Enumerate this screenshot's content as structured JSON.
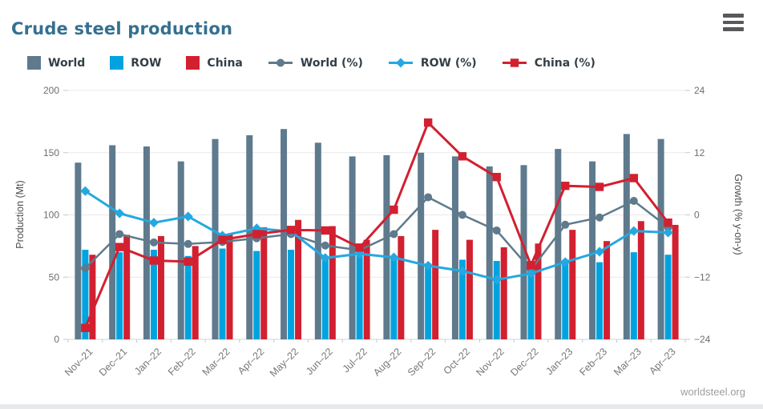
{
  "header": {
    "title": "Crude steel production"
  },
  "menu": {
    "icon": "hamburger-menu"
  },
  "footer": {
    "source": "worldsteel.org"
  },
  "legend": {
    "items": [
      {
        "label": "World",
        "type": "bar",
        "color": "#5e7a8c"
      },
      {
        "label": "ROW",
        "type": "bar",
        "color": "#00a3e0"
      },
      {
        "label": "China",
        "type": "bar",
        "color": "#d22030"
      },
      {
        "label": "World (%)",
        "type": "line",
        "marker": "circle",
        "color": "#5e7a8c"
      },
      {
        "label": "ROW (%)",
        "type": "line",
        "marker": "diamond",
        "color": "#25a8e0"
      },
      {
        "label": "China (%)",
        "type": "line",
        "marker": "square",
        "color": "#d22030"
      }
    ]
  },
  "chart_data": {
    "type": "bar+line combo, dual axis",
    "title": "Crude steel production",
    "categories": [
      "Nov–21",
      "Dec–21",
      "Jan–22",
      "Feb–22",
      "Mar–22",
      "Apr–22",
      "May–22",
      "Jun–22",
      "Jul–22",
      "Aug–22",
      "Sep–22",
      "Oct–22",
      "Nov–22",
      "Dec–22",
      "Jan–23",
      "Feb–23",
      "Mar–23",
      "Apr–23"
    ],
    "bar_series": [
      {
        "name": "World",
        "axis": "left",
        "color": "#5e7a8c",
        "values": [
          142,
          156,
          155,
          143,
          161,
          164,
          169,
          158,
          147,
          148,
          150,
          147,
          139,
          140,
          153,
          143,
          165,
          161
        ]
      },
      {
        "name": "ROW",
        "axis": "left",
        "color": "#00a3e0",
        "values": [
          72,
          70,
          72,
          67,
          73,
          71,
          72,
          65,
          67,
          65,
          61,
          64,
          63,
          53,
          64,
          62,
          70,
          68
        ]
      },
      {
        "name": "China",
        "axis": "left",
        "color": "#d22030",
        "values": [
          68,
          84,
          83,
          75,
          85,
          90,
          96,
          91,
          80,
          83,
          88,
          80,
          74,
          77,
          88,
          79,
          95,
          92
        ]
      }
    ],
    "line_series": [
      {
        "name": "World (%)",
        "axis": "right",
        "color": "#5e7a8c",
        "marker": "circle",
        "values": [
          -10.3,
          -3.7,
          -5.3,
          -5.6,
          -5.2,
          -4.5,
          -3.7,
          -5.9,
          -6.8,
          -3.7,
          3.4,
          0,
          -3,
          -10.6,
          -1.9,
          -0.5,
          2.7,
          -2.4
        ]
      },
      {
        "name": "ROW (%)",
        "axis": "right",
        "color": "#25a8e0",
        "marker": "diamond",
        "values": [
          4.6,
          0.3,
          -1.5,
          -0.3,
          -4,
          -2.6,
          -3.2,
          -8.3,
          -7.5,
          -8.2,
          -9.8,
          -10.8,
          -12.5,
          -11.3,
          -9.1,
          -7.1,
          -3.1,
          -3.4
        ]
      },
      {
        "name": "China (%)",
        "axis": "right",
        "color": "#d22030",
        "marker": "square",
        "values": [
          -21.8,
          -6.2,
          -8.8,
          -9,
          -4.8,
          -3.7,
          -2.9,
          -3,
          -6.3,
          1,
          17.8,
          11.3,
          7.3,
          -9.7,
          5.6,
          5.4,
          7.1,
          -1.5
        ]
      }
    ],
    "left_axis": {
      "label": "Production (Mt)",
      "ticks": [
        200,
        150,
        100,
        50,
        0
      ],
      "range": [
        0,
        200
      ]
    },
    "right_axis": {
      "label": "Growth (% y-on-y)",
      "ticks": [
        24,
        12,
        0,
        -12,
        -24
      ],
      "range": [
        -24,
        24
      ]
    },
    "grid": true,
    "legend_position": "top"
  }
}
